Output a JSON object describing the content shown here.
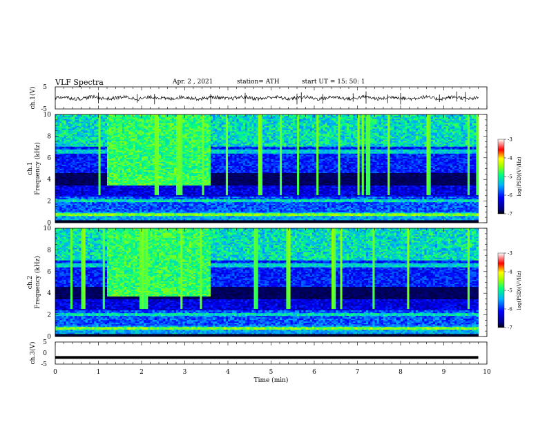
{
  "header": {
    "title": "VLF  Spectra",
    "date": "Apr. 2  , 2021",
    "station": "station= ATH",
    "start_ut": "start  UT  =    15: 50: 1"
  },
  "chart_data": [
    {
      "type": "line",
      "name": "ch1-waveform",
      "ylabel": "ch.1(V)",
      "ylim": [
        -5,
        5
      ],
      "yticks": [
        5,
        -5
      ],
      "xlim": [
        0,
        10
      ],
      "mean_value": 0.0,
      "spike_times_min": [
        1.0,
        1.9,
        2.3,
        3.6,
        4.4,
        5.6,
        5.7,
        6.2,
        6.9,
        7.2,
        7.7,
        8.0,
        8.9,
        9.3,
        9.5
      ]
    },
    {
      "type": "heatmap",
      "name": "ch1-spectrogram",
      "ylabel": "ch.1\nFrequency (kHz)",
      "ylim": [
        0,
        10
      ],
      "yticks": [
        0,
        2,
        4,
        6,
        8,
        10
      ],
      "xlim": [
        0,
        9.8
      ],
      "enhanced_interval_min": [
        1.2,
        3.6
      ],
      "enhanced_band_khz": [
        3.5,
        4.2
      ],
      "colorbar": {
        "label": "log(PSD)(V²/Hz)",
        "ticks": [
          -3,
          -4,
          -5,
          -6,
          -7
        ]
      }
    },
    {
      "type": "heatmap",
      "name": "ch2-spectrogram",
      "ylabel": "ch.2\nFrequency (kHz)",
      "ylim": [
        0,
        10
      ],
      "yticks": [
        0,
        2,
        4,
        6,
        8,
        10
      ],
      "xlim": [
        0,
        9.8
      ],
      "enhanced_interval_min": [
        1.2,
        3.6
      ],
      "enhanced_band_khz": [
        3.7,
        4.3
      ],
      "colorbar": {
        "label": "log(PSD)(V²/Hz)",
        "ticks": [
          -3,
          -4,
          -5,
          -6,
          -7
        ]
      }
    },
    {
      "type": "line",
      "name": "ch3-waveform",
      "ylabel": "ch.3(V)",
      "ylim": [
        -5,
        5
      ],
      "yticks": [
        5,
        0,
        -5
      ],
      "xlim": [
        0,
        10
      ],
      "mean_value": -2.0
    }
  ],
  "x_axis": {
    "label": "Time  (min)",
    "ticks": [
      0,
      1,
      2,
      3,
      4,
      5,
      6,
      7,
      8,
      9,
      10
    ],
    "range": [
      0,
      10
    ]
  },
  "colors": {
    "colormap": [
      "#000050",
      "#0000ff",
      "#00c8ff",
      "#00ff80",
      "#ffff00",
      "#ff0000",
      "#ffffff"
    ]
  }
}
